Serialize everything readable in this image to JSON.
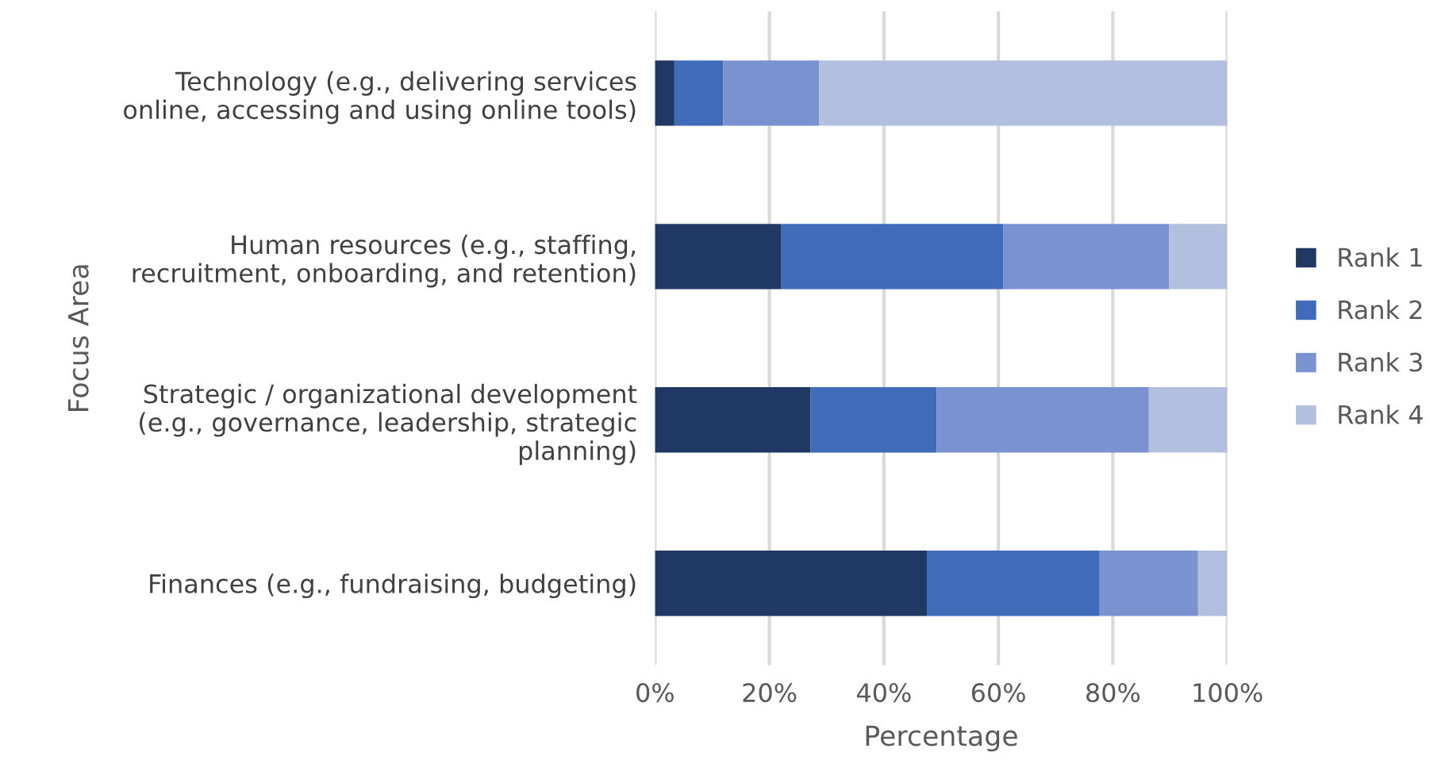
{
  "chart_data": {
    "type": "bar",
    "orientation": "horizontal",
    "stacked": true,
    "ylabel": "Focus Area",
    "xlabel": "Percentage",
    "categories": [
      "Technology (e.g., delivering services\nonline, accessing and using online tools)",
      "Human resources (e.g., staffing,\nrecruitment, onboarding, and retention)",
      "Strategic / organizational development\n(e.g., governance, leadership, strategic\nplanning)",
      "Finances (e.g., fundraising, budgeting)"
    ],
    "series": [
      {
        "name": "Rank 1",
        "color": "#203864",
        "values": [
          3.4,
          22.1,
          27.2,
          47.5
        ]
      },
      {
        "name": "Rank 2",
        "color": "#3f6bb8",
        "values": [
          8.5,
          38.8,
          22.0,
          30.2
        ]
      },
      {
        "name": "Rank 3",
        "color": "#7a92cf",
        "values": [
          16.8,
          28.9,
          37.1,
          17.2
        ]
      },
      {
        "name": "Rank 4",
        "color": "#b3bfdf",
        "values": [
          71.3,
          10.2,
          13.7,
          5.1
        ]
      }
    ],
    "xlim": [
      0,
      100
    ],
    "xticks": [
      {
        "value": 0,
        "label": "0%"
      },
      {
        "value": 20,
        "label": "20%"
      },
      {
        "value": 40,
        "label": "40%"
      },
      {
        "value": 60,
        "label": "60%"
      },
      {
        "value": 80,
        "label": "80%"
      },
      {
        "value": 100,
        "label": "100%"
      }
    ],
    "grid": "x",
    "legend": "right"
  }
}
